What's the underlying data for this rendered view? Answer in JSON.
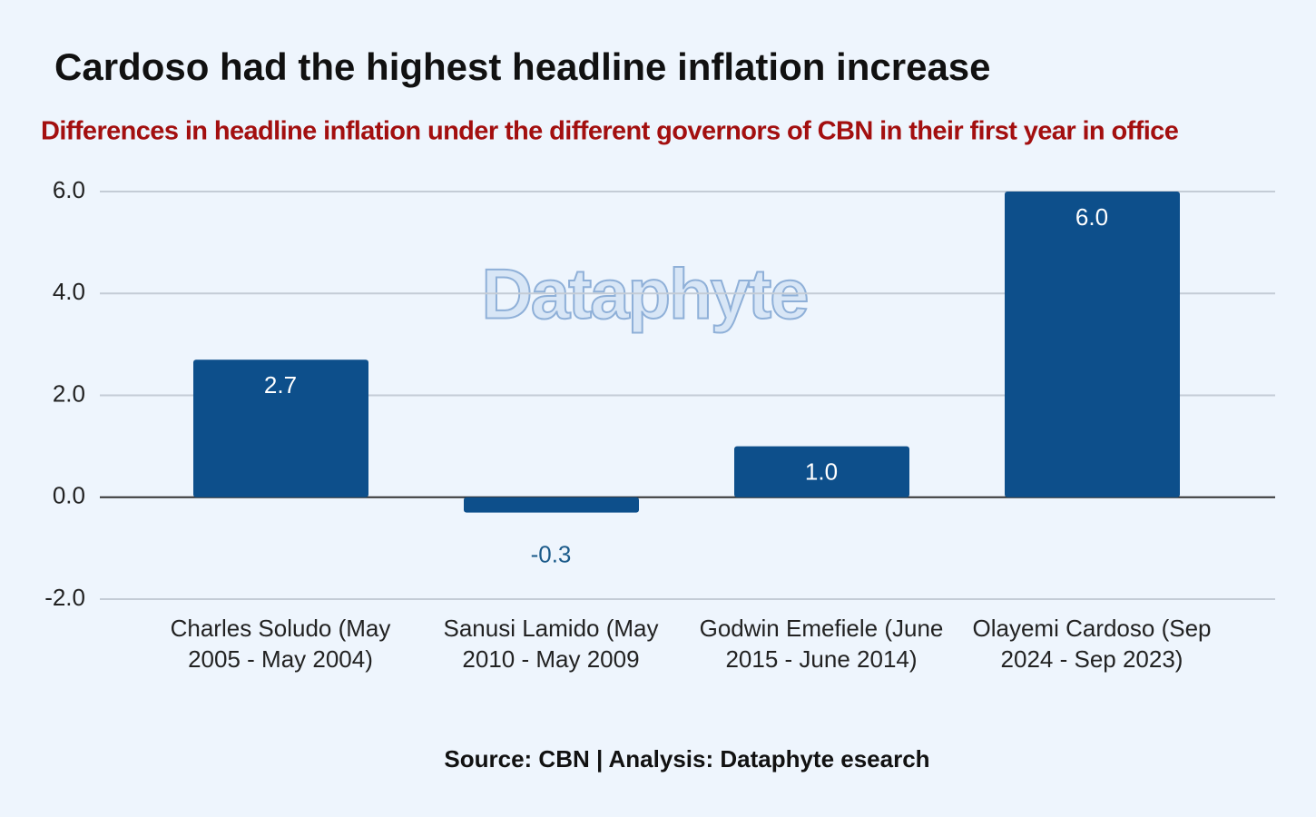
{
  "chart_data": {
    "type": "bar",
    "title": "Cardoso had the highest headline inflation increase",
    "subtitle": "Differences in headline inflation under the different governors of CBN in their first year in office",
    "watermark": "Dataphyte",
    "source": "Source: CBN | Analysis: Dataphyte esearch",
    "categories": [
      "Charles Soludo (May 2005 - May 2004)",
      "Sanusi Lamido (May 2010 - May 2009",
      "Godwin Emefiele (June 2015 - June 2014)",
      "Olayemi Cardoso (Sep 2024 - Sep 2023)"
    ],
    "values": [
      2.7,
      -0.3,
      1.0,
      6.0
    ],
    "value_labels": [
      "2.7",
      "-0.3",
      "1.0",
      "6.0"
    ],
    "color": "#0d4f8b",
    "ylim": [
      -2,
      6
    ],
    "yticks": [
      {
        "value": -2,
        "label": "-2.0"
      },
      {
        "value": 0,
        "label": "0.0"
      },
      {
        "value": 2,
        "label": "2.0"
      },
      {
        "value": 4,
        "label": "4.0"
      },
      {
        "value": 6,
        "label": "6.0"
      }
    ],
    "grid": true
  }
}
